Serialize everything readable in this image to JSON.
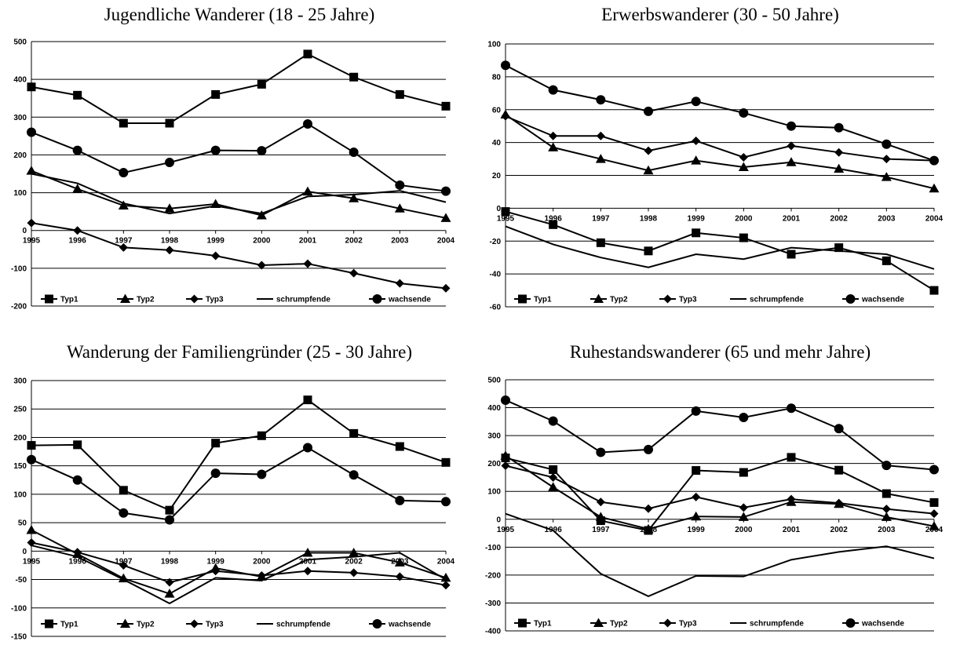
{
  "chart_data": [
    {
      "type": "line",
      "title": "Jugendliche Wanderer (18 - 25 Jahre)",
      "xlabel": "",
      "ylabel": "",
      "categories": [
        "1995",
        "1996",
        "1997",
        "1998",
        "1999",
        "2000",
        "2001",
        "2002",
        "2003",
        "2004"
      ],
      "ylim": [
        -200,
        500
      ],
      "yticks": [
        -200,
        -100,
        0,
        100,
        200,
        300,
        400,
        500
      ],
      "grid": true,
      "legend": "bottom",
      "series": [
        {
          "name": "Typ1",
          "marker": "square",
          "values": [
            380,
            358,
            284,
            284,
            360,
            387,
            467,
            406,
            360,
            329
          ]
        },
        {
          "name": "Typ2",
          "marker": "triangle",
          "values": [
            158,
            110,
            66,
            58,
            70,
            40,
            103,
            85,
            58,
            33
          ]
        },
        {
          "name": "Typ3",
          "marker": "diamond",
          "values": [
            20,
            0,
            -45,
            -52,
            -67,
            -92,
            -88,
            -113,
            -140,
            -153
          ]
        },
        {
          "name": "schrumpfende",
          "marker": "none",
          "values": [
            150,
            125,
            72,
            45,
            65,
            45,
            90,
            95,
            105,
            75
          ]
        },
        {
          "name": "wachsende",
          "marker": "circle",
          "values": [
            260,
            212,
            153,
            180,
            212,
            211,
            282,
            207,
            120,
            104
          ]
        }
      ]
    },
    {
      "type": "line",
      "title": "Erwerbswanderer (30 - 50 Jahre)",
      "xlabel": "",
      "ylabel": "",
      "categories": [
        "1995",
        "1996",
        "1997",
        "1998",
        "1999",
        "2000",
        "2001",
        "2002",
        "2003",
        "2004"
      ],
      "ylim": [
        -60,
        100
      ],
      "yticks": [
        -60,
        -40,
        -20,
        0,
        20,
        40,
        60,
        80,
        100
      ],
      "grid": true,
      "legend": "bottom",
      "series": [
        {
          "name": "Typ1",
          "marker": "square",
          "values": [
            -2,
            -10,
            -21,
            -26,
            -15,
            -18,
            -28,
            -24,
            -32,
            -50
          ]
        },
        {
          "name": "Typ2",
          "marker": "triangle",
          "values": [
            57,
            37,
            30,
            23,
            29,
            25,
            28,
            24,
            19,
            12
          ]
        },
        {
          "name": "Typ3",
          "marker": "diamond",
          "values": [
            56,
            44,
            44,
            35,
            41,
            31,
            38,
            34,
            30,
            29
          ]
        },
        {
          "name": "schrumpfende",
          "marker": "none",
          "values": [
            -11,
            -22,
            -30,
            -36,
            -28,
            -31,
            -24,
            -26,
            -28,
            -37
          ]
        },
        {
          "name": "wachsende",
          "marker": "circle",
          "values": [
            87,
            72,
            66,
            59,
            65,
            58,
            50,
            49,
            39,
            29
          ]
        }
      ]
    },
    {
      "type": "line",
      "title": "Wanderung der Familiengründer (25 - 30 Jahre)",
      "xlabel": "",
      "ylabel": "",
      "categories": [
        "1995",
        "1996",
        "1997",
        "1998",
        "1999",
        "2000",
        "2001",
        "2002",
        "2003",
        "2004"
      ],
      "ylim": [
        -150,
        300
      ],
      "yticks": [
        -150,
        -100,
        -50,
        0,
        50,
        100,
        150,
        200,
        250,
        300
      ],
      "grid": true,
      "legend": "bottom",
      "series": [
        {
          "name": "Typ1",
          "marker": "square",
          "values": [
            186,
            187,
            107,
            72,
            190,
            203,
            266,
            207,
            184,
            156
          ]
        },
        {
          "name": "Typ2",
          "marker": "triangle",
          "values": [
            37,
            -5,
            -48,
            -75,
            -30,
            -45,
            -3,
            -3,
            -20,
            -47
          ]
        },
        {
          "name": "Typ3",
          "marker": "diamond",
          "values": [
            15,
            -2,
            -25,
            -55,
            -35,
            -43,
            -35,
            -38,
            -45,
            -60
          ]
        },
        {
          "name": "schrumpfende",
          "marker": "none",
          "values": [
            10,
            -10,
            -50,
            -92,
            -47,
            -52,
            -15,
            -10,
            -3,
            -50
          ]
        },
        {
          "name": "wachsende",
          "marker": "circle",
          "values": [
            161,
            125,
            67,
            55,
            137,
            135,
            182,
            134,
            89,
            87
          ]
        }
      ]
    },
    {
      "type": "line",
      "title": "Ruhestandswanderer (65 und mehr Jahre)",
      "xlabel": "",
      "ylabel": "",
      "categories": [
        "1995",
        "1996",
        "1997",
        "1998",
        "1999",
        "2000",
        "2001",
        "2002",
        "2003",
        "2004"
      ],
      "ylim": [
        -400,
        500
      ],
      "yticks": [
        -400,
        -300,
        -200,
        -100,
        0,
        100,
        200,
        300,
        400,
        500
      ],
      "grid": true,
      "legend": "bottom",
      "series": [
        {
          "name": "Typ1",
          "marker": "square",
          "values": [
            220,
            178,
            -5,
            -40,
            175,
            168,
            222,
            176,
            92,
            60
          ]
        },
        {
          "name": "Typ2",
          "marker": "triangle",
          "values": [
            228,
            115,
            8,
            -35,
            10,
            8,
            62,
            55,
            8,
            -25
          ]
        },
        {
          "name": "Typ3",
          "marker": "diamond",
          "values": [
            192,
            150,
            62,
            38,
            80,
            42,
            72,
            58,
            37,
            20
          ]
        },
        {
          "name": "schrumpfende",
          "marker": "none",
          "values": [
            20,
            -40,
            -195,
            -276,
            -203,
            -205,
            -145,
            -117,
            -97,
            -140
          ]
        },
        {
          "name": "wachsende",
          "marker": "circle",
          "values": [
            427,
            352,
            240,
            250,
            388,
            365,
            398,
            325,
            193,
            178
          ]
        }
      ]
    }
  ]
}
